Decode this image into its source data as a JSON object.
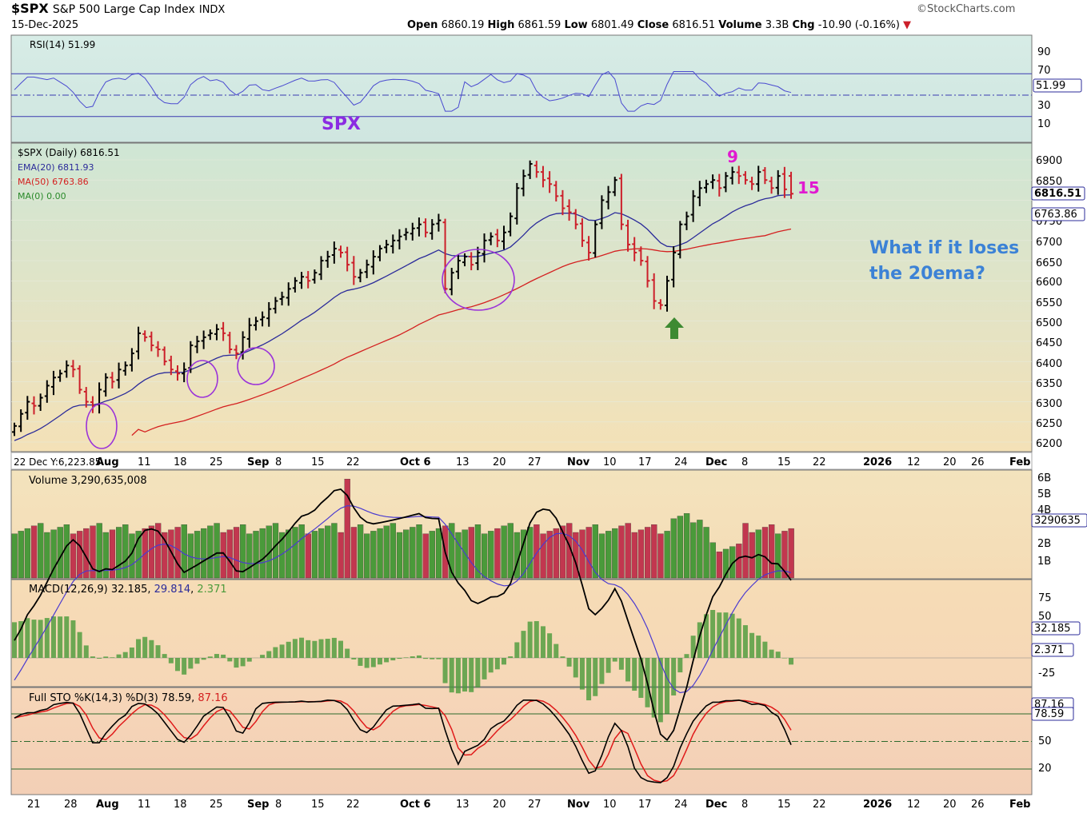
{
  "header": {
    "symbol": "$SPX",
    "name": "S&P 500 Large Cap Index",
    "exchange": "INDX",
    "date": "15-Dec-2025",
    "source": "©StockCharts.com",
    "open_label": "Open",
    "open": "6860.19",
    "high_label": "High",
    "high": "6861.59",
    "low_label": "Low",
    "low": "6801.49",
    "close_label": "Close",
    "close": "6816.51",
    "volume_label": "Volume",
    "volume": "3.3B",
    "chg_label": "Chg",
    "chg": "-10.90 (-0.16%)",
    "chg_arrow": "▼"
  },
  "colors": {
    "up": "#000000",
    "down": "#cc1f2a",
    "ema": "#2b2b9a",
    "ma50": "#d42020",
    "vol_up": "#4a9a3a",
    "vol_down": "#c2374f",
    "annotation": "#8b2be2",
    "magenta": "#e01ad0",
    "note": "#3c82d6",
    "arrow": "#3d8a32"
  },
  "rsi_panel": {
    "legend": "RSI(14) 51.99",
    "ticks": [
      "90",
      "70",
      "51.99",
      "30",
      "10"
    ],
    "watermark": "SPX",
    "value_box": "51.99"
  },
  "price_panel": {
    "legend": [
      "$SPX (Daily) 6816.51",
      "EMA(20) 6811.93",
      "MA(50) 6763.86",
      "MA(0) 0.00"
    ],
    "legend_colors": [
      "#000000",
      "#2b2b9a",
      "#d42020",
      "#2a8a2a"
    ],
    "value_box_close": "6816.51",
    "value_box_ma": "6763.86",
    "y_ticks": [
      "6900",
      "6850",
      "6750",
      "6700",
      "6650",
      "6600",
      "6550",
      "6500",
      "6450",
      "6400",
      "6350",
      "6300",
      "6250",
      "6200"
    ],
    "x_axis_left": "22 Dec Y:6,223.85",
    "annotation_9": "9",
    "annotation_15": "15",
    "note_line1": "What if it loses",
    "note_line2": "the 20ema?"
  },
  "volume_panel": {
    "legend": "Volume 3,290,635,008",
    "ticks": [
      "6B",
      "5B",
      "4B",
      "2B",
      "1B"
    ],
    "value_box": "3290635"
  },
  "macd_panel": {
    "legend_prefix": "MACD(12,26,9) 32.185,",
    "legend_signal": "29.814",
    "legend_hist": "2.371",
    "ticks": [
      "75",
      "50",
      "-25"
    ],
    "value_box": "32.185",
    "hist_box": "2.371"
  },
  "sto_panel": {
    "legend_prefix": "Full STO %K(14,3) %D(3) 78.59,",
    "legend_d": "87.16",
    "ticks": [
      "50",
      "20"
    ],
    "value_box_k": "78.59",
    "value_box_d": "87.16"
  },
  "x_axis_labels": [
    "21",
    "28",
    "Aug",
    "11",
    "18",
    "25",
    "Sep",
    "8",
    "15",
    "22",
    "Oct 6",
    "13",
    "20",
    "27",
    "Nov",
    "10",
    "17",
    "24",
    "Dec",
    "8",
    "15",
    "22",
    "2026",
    "12",
    "20",
    "26",
    "Feb"
  ],
  "chart_data": {
    "type": "ohlc",
    "title": "$SPX S&P 500 Large Cap Index INDX",
    "date_range": [
      "2025-07-16",
      "2025-12-15"
    ],
    "ylim": [
      6180,
      6940
    ],
    "close_approx": [
      6240,
      6270,
      6300,
      6290,
      6310,
      6340,
      6360,
      6370,
      6390,
      6380,
      6330,
      6300,
      6290,
      6330,
      6360,
      6350,
      6380,
      6390,
      6420,
      6470,
      6460,
      6440,
      6430,
      6400,
      6380,
      6370,
      6380,
      6440,
      6450,
      6460,
      6470,
      6480,
      6470,
      6430,
      6420,
      6460,
      6490,
      6500,
      6510,
      6530,
      6550,
      6560,
      6580,
      6600,
      6610,
      6600,
      6620,
      6650,
      6660,
      6680,
      6670,
      6640,
      6610,
      6620,
      6640,
      6660,
      6680,
      6690,
      6700,
      6710,
      6720,
      6730,
      6740,
      6720,
      6740,
      6750,
      6580,
      6620,
      6650,
      6660,
      6640,
      6670,
      6700,
      6710,
      6700,
      6720,
      6760,
      6830,
      6860,
      6890,
      6870,
      6850,
      6840,
      6810,
      6780,
      6770,
      6740,
      6700,
      6670,
      6740,
      6800,
      6820,
      6850,
      6740,
      6690,
      6670,
      6650,
      6600,
      6550,
      6540,
      6600,
      6670,
      6740,
      6760,
      6810,
      6830,
      6840,
      6850,
      6830,
      6860,
      6870,
      6860,
      6850,
      6840,
      6870,
      6850,
      6830,
      6860,
      6827,
      6816
    ],
    "ema20_end": 6811.93,
    "ma50_end": 6763.86,
    "volume_last": 3290635008,
    "rsi_last": 51.99,
    "macd": {
      "macd": 32.185,
      "signal": 29.814,
      "hist": 2.371
    },
    "stochastic": {
      "k": 78.59,
      "d": 87.16
    }
  }
}
